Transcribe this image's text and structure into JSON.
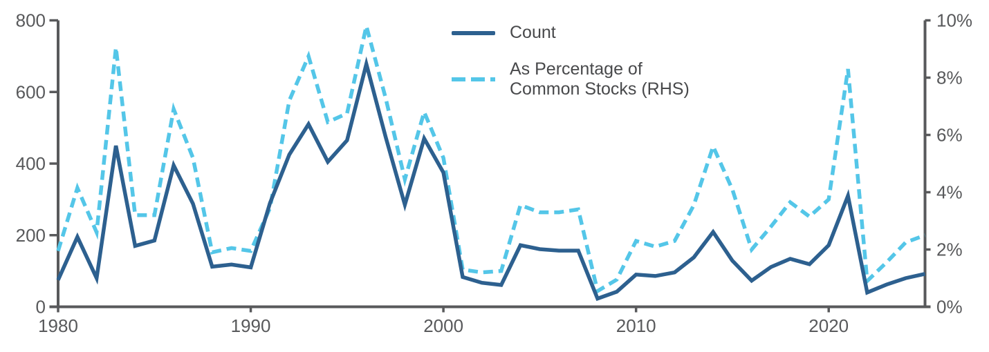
{
  "chart_data": {
    "type": "line",
    "title": "",
    "x": [
      1980,
      1981,
      1982,
      1983,
      1984,
      1985,
      1986,
      1987,
      1988,
      1989,
      1990,
      1991,
      1992,
      1993,
      1994,
      1995,
      1996,
      1997,
      1998,
      1999,
      2000,
      2001,
      2002,
      2003,
      2004,
      2005,
      2006,
      2007,
      2008,
      2009,
      2010,
      2011,
      2012,
      2013,
      2014,
      2015,
      2016,
      2017,
      2018,
      2019,
      2020,
      2021,
      2022,
      2023,
      2024,
      2025
    ],
    "series": [
      {
        "name": "Count",
        "axis": "left",
        "style": "solid",
        "color": "#2d608f",
        "values": [
          75,
          195,
          80,
          450,
          170,
          185,
          395,
          288,
          112,
          118,
          110,
          290,
          425,
          510,
          405,
          465,
          678,
          475,
          285,
          470,
          375,
          83,
          67,
          61,
          172,
          161,
          157,
          157,
          23,
          42,
          90,
          86,
          96,
          138,
          209,
          129,
          73,
          111,
          134,
          119,
          172,
          310,
          40,
          62,
          80,
          92
        ]
      },
      {
        "name": "As Percentage of\nCommon Stocks (RHS)",
        "axis": "right",
        "style": "dashed",
        "color": "#54c6e8",
        "values": [
          1.95,
          4.15,
          2.6,
          9.05,
          3.2,
          3.2,
          6.9,
          5.2,
          1.9,
          2.05,
          1.95,
          3.45,
          7.2,
          8.75,
          6.45,
          6.75,
          9.8,
          7.3,
          4.45,
          6.8,
          5.2,
          1.3,
          1.2,
          1.25,
          3.55,
          3.3,
          3.3,
          3.4,
          0.55,
          0.95,
          2.3,
          2.1,
          2.3,
          3.55,
          5.6,
          4.1,
          2.0,
          2.8,
          3.65,
          3.15,
          3.75,
          8.3,
          0.9,
          1.55,
          2.25,
          2.5
        ]
      }
    ],
    "axes": {
      "left": {
        "range": [
          0,
          800
        ],
        "tick_values": [
          0,
          200,
          400,
          600,
          800
        ],
        "tick_labels": [
          "0",
          "200",
          "400",
          "600",
          "800"
        ]
      },
      "right": {
        "range": [
          0,
          10
        ],
        "tick_values": [
          0,
          2,
          4,
          6,
          8,
          10
        ],
        "tick_labels": [
          "0%",
          "2%",
          "4%",
          "6%",
          "8%",
          "10%"
        ]
      },
      "x": {
        "range": [
          1980,
          2025
        ],
        "tick_values": [
          1980,
          1990,
          2000,
          2010,
          2020
        ],
        "tick_labels": [
          "1980",
          "1990",
          "2000",
          "2010",
          "2020"
        ]
      }
    },
    "grid": false,
    "legend_position": "top-center",
    "colors": {
      "axis": "#58595b",
      "tick_text": "#58595b",
      "legend_text": "#48494b",
      "background": "#ffffff"
    }
  }
}
